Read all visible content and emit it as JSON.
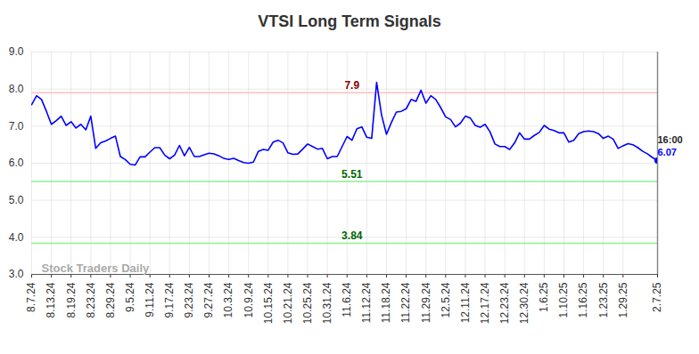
{
  "chart_data": {
    "type": "line",
    "title": "VTSI Long Term Signals",
    "categories": [
      "8.7.24",
      null,
      null,
      null,
      "8.13.24",
      null,
      null,
      null,
      "8.19.24",
      null,
      null,
      null,
      "8.23.24",
      null,
      null,
      null,
      "8.29.24",
      null,
      null,
      null,
      "9.5.24",
      null,
      null,
      null,
      "9.11.24",
      null,
      null,
      null,
      "9.17.24",
      null,
      null,
      null,
      "9.23.24",
      null,
      null,
      null,
      "9.27.24",
      null,
      null,
      null,
      "10.3.24",
      null,
      null,
      null,
      "10.9.24",
      null,
      null,
      null,
      "10.15.24",
      null,
      null,
      null,
      "10.21.24",
      null,
      null,
      null,
      "10.25.24",
      null,
      null,
      null,
      "10.31.24",
      null,
      null,
      null,
      "11.6.24",
      null,
      null,
      null,
      "11.12.24",
      null,
      null,
      null,
      "11.18.24",
      null,
      null,
      null,
      "11.22.24",
      null,
      null,
      null,
      "11.29.24",
      null,
      null,
      null,
      "12.5.24",
      null,
      null,
      null,
      "12.11.24",
      null,
      null,
      null,
      "12.17.24",
      null,
      null,
      null,
      "12.23.24",
      null,
      null,
      null,
      "12.30.24",
      null,
      null,
      null,
      "1.6.25",
      null,
      null,
      null,
      "1.10.25",
      null,
      null,
      null,
      "1.16.25",
      null,
      null,
      null,
      "1.23.25",
      null,
      null,
      null,
      "1.29.25",
      null,
      null,
      null,
      null,
      null,
      null,
      "2.7.25"
    ],
    "series": [
      {
        "name": "VTSI",
        "color": "#0000ff",
        "values": [
          7.58,
          7.82,
          7.72,
          7.4,
          7.05,
          7.15,
          7.27,
          7.02,
          7.12,
          6.95,
          7.05,
          6.9,
          7.27,
          6.4,
          6.55,
          6.6,
          6.67,
          6.73,
          6.18,
          6.1,
          5.97,
          5.95,
          6.17,
          6.17,
          6.3,
          6.42,
          6.42,
          6.22,
          6.12,
          6.22,
          6.48,
          6.2,
          6.43,
          6.18,
          6.18,
          6.23,
          6.27,
          6.25,
          6.2,
          6.13,
          6.1,
          6.13,
          6.07,
          6.02,
          6.0,
          6.03,
          6.32,
          6.37,
          6.35,
          6.57,
          6.62,
          6.55,
          6.28,
          6.24,
          6.25,
          6.38,
          6.52,
          6.45,
          6.38,
          6.4,
          6.12,
          6.18,
          6.18,
          6.45,
          6.72,
          6.62,
          6.93,
          6.98,
          6.7,
          6.67,
          8.18,
          7.3,
          6.78,
          7.1,
          7.38,
          7.4,
          7.47,
          7.72,
          7.67,
          7.97,
          7.62,
          7.82,
          7.72,
          7.5,
          7.25,
          7.18,
          6.98,
          7.08,
          7.27,
          7.22,
          7.02,
          6.97,
          7.05,
          6.85,
          6.52,
          6.45,
          6.45,
          6.37,
          6.55,
          6.82,
          6.65,
          6.65,
          6.75,
          6.83,
          7.02,
          6.92,
          6.88,
          6.82,
          6.82,
          6.57,
          6.62,
          6.8,
          6.85,
          6.87,
          6.85,
          6.8,
          6.67,
          6.73,
          6.65,
          6.4,
          6.47,
          6.53,
          6.5,
          6.42,
          6.32,
          6.25,
          6.15,
          6.07
        ]
      }
    ],
    "ylim": [
      3,
      9
    ],
    "yticks": [
      3,
      4,
      5,
      6,
      7,
      8,
      9
    ],
    "grid": true,
    "reference_lines": [
      {
        "value": 7.9,
        "color": "#ffc0c0",
        "label_color": "#8b0000"
      },
      {
        "value": 5.51,
        "color": "#90ee90",
        "label_color": "#006400"
      },
      {
        "value": 3.84,
        "color": "#90ee90",
        "label_color": "#006400"
      }
    ],
    "last_label": "16:00",
    "watermark": "Stock Traders Daily"
  }
}
